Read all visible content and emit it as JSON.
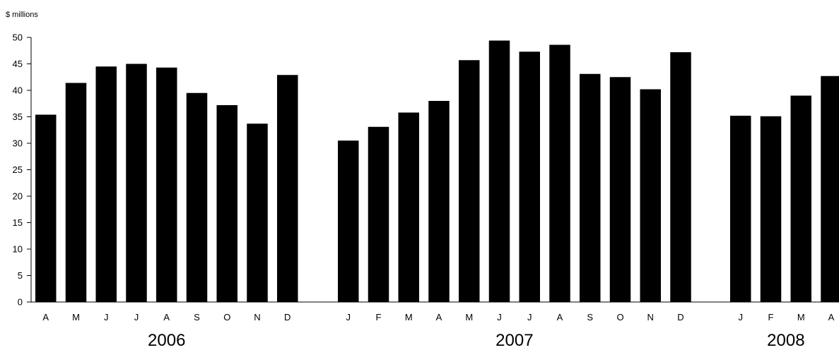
{
  "chart_data": {
    "type": "bar",
    "ylabel": "$ millions",
    "ylim": [
      0,
      50
    ],
    "yticks": [
      "0",
      "5",
      "10",
      "15",
      "20",
      "25",
      "30",
      "35",
      "40",
      "45",
      "50"
    ],
    "grid": false,
    "legend": "none",
    "bar_color": "#000000",
    "groups": [
      {
        "year": "2006",
        "months": [
          "A",
          "M",
          "J",
          "J",
          "A",
          "S",
          "O",
          "N",
          "D"
        ],
        "values": [
          35.4,
          41.4,
          44.5,
          45.0,
          44.3,
          39.5,
          37.2,
          33.7,
          42.9
        ]
      },
      {
        "year": "2007",
        "months": [
          "J",
          "F",
          "M",
          "A",
          "M",
          "J",
          "J",
          "A",
          "S",
          "O",
          "N",
          "D"
        ],
        "values": [
          30.5,
          33.1,
          35.8,
          38.0,
          45.7,
          49.4,
          47.3,
          48.6,
          43.1,
          42.5,
          40.2,
          47.2
        ]
      },
      {
        "year": "2008",
        "months": [
          "J",
          "F",
          "M",
          "A"
        ],
        "values": [
          35.2,
          35.1,
          39.0,
          42.7
        ]
      }
    ]
  }
}
